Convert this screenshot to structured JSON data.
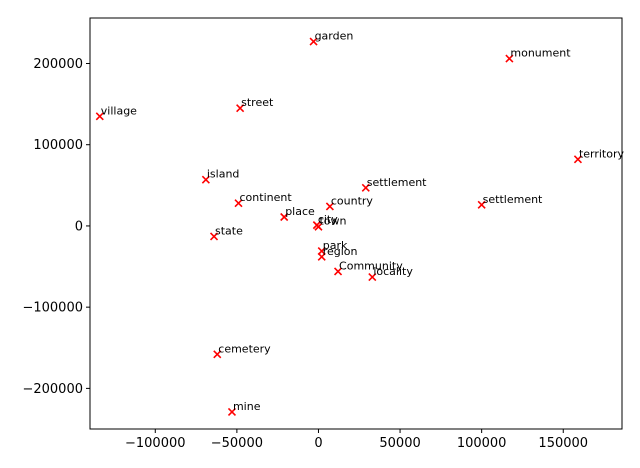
{
  "chart_data": {
    "type": "scatter",
    "title": "",
    "xlabel": "",
    "ylabel": "",
    "grid": false,
    "marker": "x",
    "marker_color": "#ff0000",
    "xlim": [
      -140000,
      186000
    ],
    "ylim": [
      -250000,
      256000
    ],
    "xticks": [
      -100000,
      -50000,
      0,
      50000,
      100000,
      150000
    ],
    "yticks": [
      -200000,
      -100000,
      0,
      100000,
      200000
    ],
    "xtick_labels": [
      "−100000",
      "−50000",
      "0",
      "50000",
      "100000",
      "150000"
    ],
    "ytick_labels": [
      "−200000",
      "−100000",
      "0",
      "100000",
      "200000"
    ],
    "points": [
      {
        "label": "garden",
        "x": -3000,
        "y": 227000
      },
      {
        "label": "monument",
        "x": 117000,
        "y": 206000
      },
      {
        "label": "village",
        "x": -134000,
        "y": 135000
      },
      {
        "label": "street",
        "x": -48000,
        "y": 145000
      },
      {
        "label": "territory",
        "x": 159000,
        "y": 82000
      },
      {
        "label": "island",
        "x": -69000,
        "y": 57000
      },
      {
        "label": "settlement",
        "x": 29000,
        "y": 47000
      },
      {
        "label": "continent",
        "x": -49000,
        "y": 28000
      },
      {
        "label": "country",
        "x": 7000,
        "y": 24000
      },
      {
        "label": "settlement",
        "x": 100000,
        "y": 26000
      },
      {
        "label": "place",
        "x": -21000,
        "y": 11000
      },
      {
        "label": "city",
        "x": -1000,
        "y": 1000
      },
      {
        "label": "town",
        "x": 0,
        "y": -1000
      },
      {
        "label": "state",
        "x": -64000,
        "y": -13000
      },
      {
        "label": "park",
        "x": 2000,
        "y": -31000
      },
      {
        "label": "region",
        "x": 2000,
        "y": -38000
      },
      {
        "label": "Community",
        "x": 12000,
        "y": -56000
      },
      {
        "label": "locality",
        "x": 33000,
        "y": -63000
      },
      {
        "label": "cemetery",
        "x": -62000,
        "y": -158000
      },
      {
        "label": "mine",
        "x": -53000,
        "y": -229000
      }
    ]
  }
}
